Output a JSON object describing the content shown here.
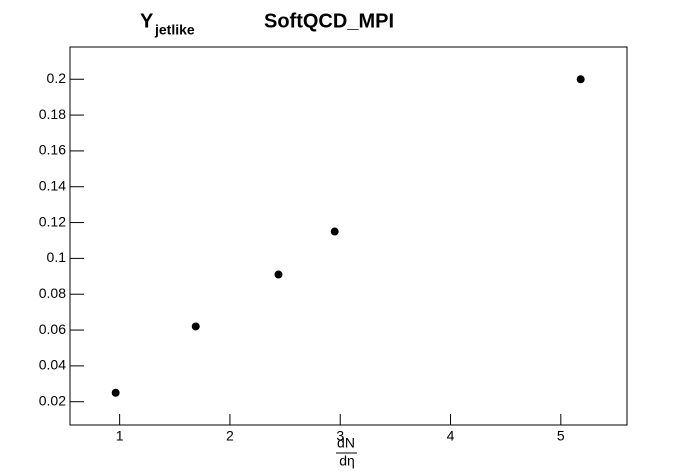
{
  "chart_data": {
    "type": "scatter",
    "title": {
      "main": "Y",
      "subscript": "jetlike",
      "right": "SoftQCD_MPI"
    },
    "x_label": {
      "numerator": "dN",
      "denominator": "dη"
    },
    "x": [
      0.964,
      1.69,
      2.44,
      2.95,
      5.18
    ],
    "values": [
      0.025,
      0.062,
      0.091,
      0.115,
      0.2
    ],
    "color": "#000000",
    "xlim": [
      0.55,
      5.6
    ],
    "xticks": [
      1,
      2,
      3,
      4,
      5
    ],
    "ylim": [
      0.007,
      0.218
    ],
    "yticks": [
      0.02,
      0.04,
      0.06,
      0.08,
      0.1,
      0.12,
      0.14,
      0.16,
      0.18,
      0.2
    ]
  }
}
